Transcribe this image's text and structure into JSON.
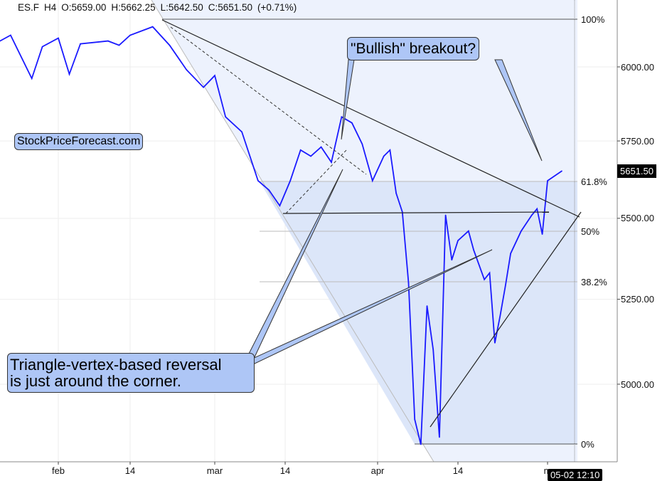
{
  "header": {
    "symbol": "ES.F",
    "interval": "H4",
    "open": "O:5659.00",
    "high": "H:5662.25",
    "low": "L:5642.50",
    "close": "C:5651.50",
    "change": "(+0.71%)"
  },
  "watermark_box": "StockPriceForecast.com",
  "annotations": {
    "bullish": "\"Bullish\" breakout?",
    "triangle_line1": "Triangle-vertex-based reversal",
    "triangle_line2": "is just around the corner."
  },
  "last_price": "5651.50",
  "crosshair_date": "05-02 12:10",
  "colors": {
    "series": "#1a1aff",
    "shade_light": "#edf2fd",
    "shade_dark": "#dce6f9",
    "callout": "#aec6f6"
  },
  "chart_data": {
    "type": "line",
    "title": "",
    "y_scale": "log",
    "ylim": [
      4780,
      6180
    ],
    "y_ticks": [
      "6000.00",
      "5750.00",
      "5500.00",
      "5250.00",
      "5000.00"
    ],
    "x_ticks": [
      "feb",
      "14",
      "mar",
      "14",
      "apr",
      "14",
      "m"
    ],
    "fib_levels": [
      {
        "label": "100%",
        "price": 6150
      },
      {
        "label": "61.8%",
        "price": 5640
      },
      {
        "label": "50%",
        "price": 5485
      },
      {
        "label": "38.2%",
        "price": 5330
      },
      {
        "label": "0%",
        "price": 4810
      }
    ],
    "grid": true,
    "series": [
      {
        "values": [
          [
            "2025-01-21",
            6090
          ],
          [
            "2025-01-23",
            6110
          ],
          [
            "2025-01-27",
            5960
          ],
          [
            "2025-01-29",
            6070
          ],
          [
            "2025-02-01",
            6100
          ],
          [
            "2025-02-03",
            5975
          ],
          [
            "2025-02-05",
            6080
          ],
          [
            "2025-02-10",
            6090
          ],
          [
            "2025-02-12",
            6075
          ],
          [
            "2025-02-14",
            6110
          ],
          [
            "2025-02-18",
            6140
          ],
          [
            "2025-02-21",
            6075
          ],
          [
            "2025-02-24",
            5990
          ],
          [
            "2025-02-27",
            5930
          ],
          [
            "2025-03-01",
            5970
          ],
          [
            "2025-03-03",
            5830
          ],
          [
            "2025-03-06",
            5780
          ],
          [
            "2025-03-09",
            5620
          ],
          [
            "2025-03-11",
            5590
          ],
          [
            "2025-03-13",
            5540
          ],
          [
            "2025-03-15",
            5620
          ],
          [
            "2025-03-17",
            5720
          ],
          [
            "2025-03-19",
            5700
          ],
          [
            "2025-03-21",
            5730
          ],
          [
            "2025-03-23",
            5680
          ],
          [
            "2025-03-25",
            5830
          ],
          [
            "2025-03-27",
            5810
          ],
          [
            "2025-03-29",
            5740
          ],
          [
            "2025-03-31",
            5620
          ],
          [
            "2025-04-02",
            5700
          ],
          [
            "2025-04-03",
            5720
          ],
          [
            "2025-04-04",
            5580
          ],
          [
            "2025-04-05",
            5520
          ],
          [
            "2025-04-06",
            5300
          ],
          [
            "2025-04-07",
            4900
          ],
          [
            "2025-04-08",
            4830
          ],
          [
            "2025-04-09",
            5230
          ],
          [
            "2025-04-10",
            5100
          ],
          [
            "2025-04-11",
            4850
          ],
          [
            "2025-04-12",
            5510
          ],
          [
            "2025-04-13",
            5370
          ],
          [
            "2025-04-14",
            5430
          ],
          [
            "2025-04-16",
            5460
          ],
          [
            "2025-04-17",
            5400
          ],
          [
            "2025-04-19",
            5310
          ],
          [
            "2025-04-20",
            5330
          ],
          [
            "2025-04-21",
            5120
          ],
          [
            "2025-04-22",
            5200
          ],
          [
            "2025-04-23",
            5290
          ],
          [
            "2025-04-24",
            5390
          ],
          [
            "2025-04-26",
            5460
          ],
          [
            "2025-04-28",
            5510
          ],
          [
            "2025-04-29",
            5530
          ],
          [
            "2025-04-30",
            5450
          ],
          [
            "2025-05-01",
            5620
          ],
          [
            "2025-05-02",
            5651.5
          ]
        ]
      }
    ]
  }
}
